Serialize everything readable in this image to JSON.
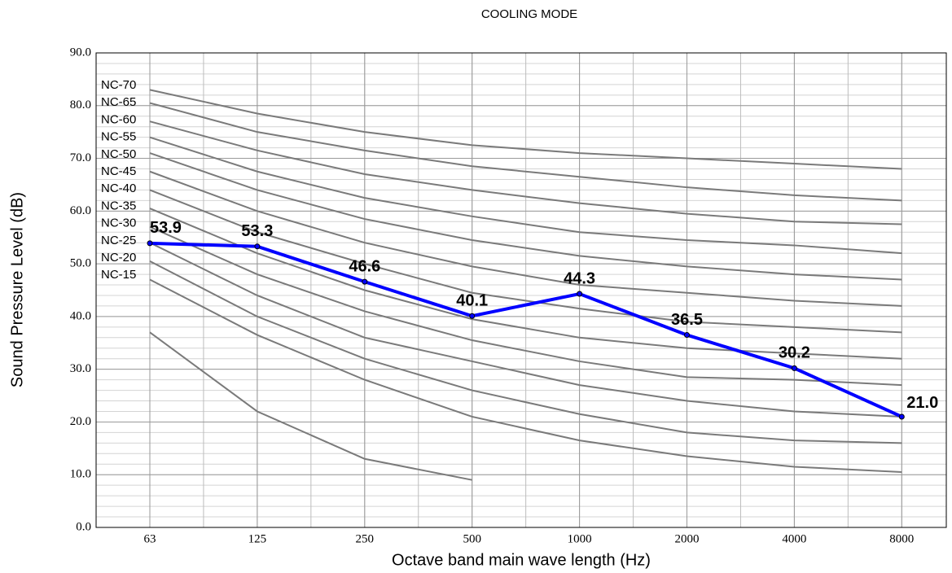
{
  "chart_data": {
    "type": "line",
    "title": "COOLING MODE",
    "xlabel": "Octave band main wave length (Hz)",
    "ylabel": "Sound Pressure  Level (dB)",
    "categories": [
      "63",
      "125",
      "250",
      "500",
      "1000",
      "2000",
      "4000",
      "8000"
    ],
    "ylim": [
      0,
      90
    ],
    "yticks": [
      {
        "value": 0,
        "label": "0.0"
      },
      {
        "value": 10,
        "label": "10.0"
      },
      {
        "value": 20,
        "label": "20.0"
      },
      {
        "value": 30,
        "label": "30.0"
      },
      {
        "value": 40,
        "label": "40.0"
      },
      {
        "value": 50,
        "label": "50.0"
      },
      {
        "value": 60,
        "label": "60.0"
      },
      {
        "value": 70,
        "label": "70.0"
      },
      {
        "value": 80,
        "label": "80.0"
      },
      {
        "value": 90,
        "label": "90.0"
      }
    ],
    "grid": true,
    "series": [
      {
        "name": "NC-70",
        "color": "#7a7a7a",
        "values": [
          83,
          78.5,
          75,
          72.5,
          71,
          70,
          69,
          68
        ]
      },
      {
        "name": "NC-65",
        "color": "#7a7a7a",
        "values": [
          80.5,
          75,
          71.5,
          68.5,
          66.5,
          64.5,
          63,
          62
        ]
      },
      {
        "name": "NC-60",
        "color": "#7a7a7a",
        "values": [
          77,
          71.5,
          67,
          64,
          61.5,
          59.5,
          58,
          57.5
        ]
      },
      {
        "name": "NC-55",
        "color": "#7a7a7a",
        "values": [
          74,
          67.5,
          62.5,
          59,
          56,
          54.5,
          53.5,
          52
        ]
      },
      {
        "name": "NC-50",
        "color": "#7a7a7a",
        "values": [
          71,
          64,
          58.5,
          54.5,
          51.5,
          49.5,
          48,
          47
        ]
      },
      {
        "name": "NC-45",
        "color": "#7a7a7a",
        "values": [
          67.5,
          60,
          54,
          49.5,
          46,
          44.5,
          43,
          42
        ]
      },
      {
        "name": "NC-40",
        "color": "#7a7a7a",
        "values": [
          64,
          56,
          50,
          44.5,
          41.5,
          39,
          38,
          37
        ]
      },
      {
        "name": "NC-35",
        "color": "#7a7a7a",
        "values": [
          60.5,
          52,
          45,
          39.5,
          36,
          34,
          33,
          32
        ]
      },
      {
        "name": "NC-30",
        "color": "#7a7a7a",
        "values": [
          57,
          48,
          41,
          35.5,
          31.5,
          28.5,
          28,
          27
        ]
      },
      {
        "name": "NC-25",
        "color": "#7a7a7a",
        "values": [
          54,
          44,
          36,
          31.5,
          27,
          24,
          22,
          21
        ]
      },
      {
        "name": "NC-20",
        "color": "#7a7a7a",
        "values": [
          50.5,
          40,
          32,
          26,
          21.5,
          18,
          16.5,
          16
        ]
      },
      {
        "name": "NC-15",
        "color": "#7a7a7a",
        "values": [
          47,
          36.5,
          28,
          21,
          16.5,
          13.5,
          11.5,
          10.5
        ]
      },
      {
        "color": "#7a7a7a",
        "values": [
          37,
          22,
          13,
          9,
          null,
          null,
          null,
          null
        ]
      },
      {
        "color": "#0000ff",
        "values": [
          53.9,
          53.3,
          46.6,
          40.1,
          44.3,
          36.5,
          30.2,
          21.0
        ],
        "value_labels": [
          "53.9",
          "53.3",
          "46.6",
          "40.1",
          "44.3",
          "36.5",
          "30.2",
          "21.0"
        ]
      }
    ]
  }
}
